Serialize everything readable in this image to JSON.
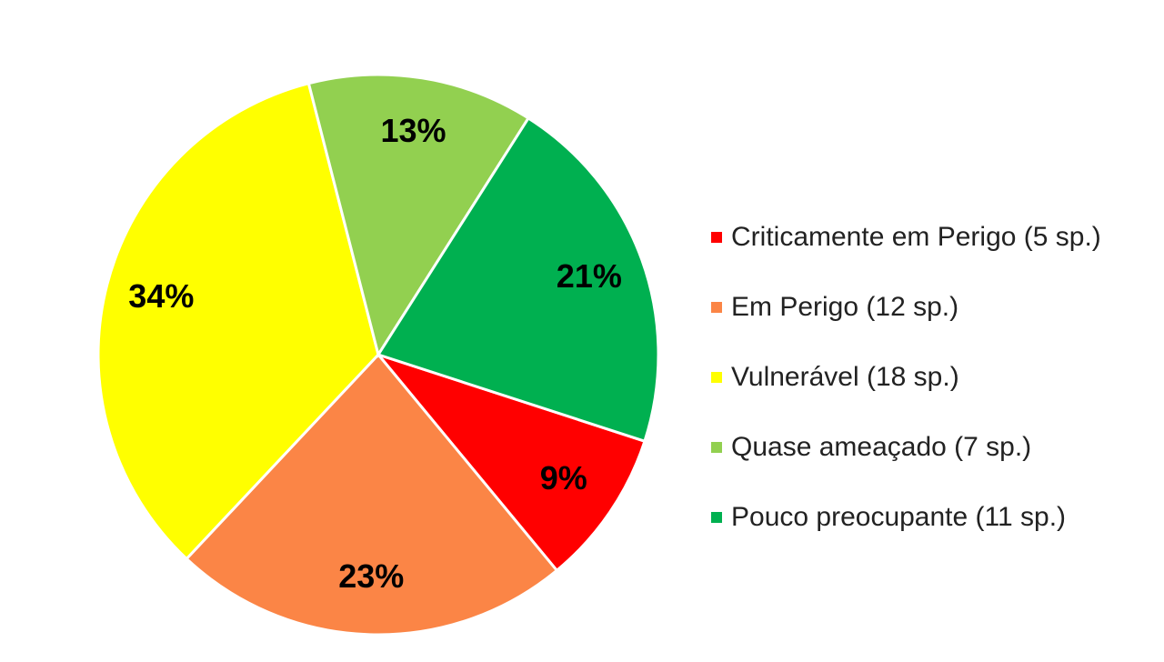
{
  "chart_data": {
    "type": "pie",
    "title": "",
    "legend_position": "right",
    "slices": [
      {
        "label": "Criticamente em Perigo (5 sp.)",
        "value": 9,
        "display": "9%",
        "color": "#ff0000"
      },
      {
        "label": "Em Perigo (12 sp.)",
        "value": 23,
        "display": "23%",
        "color": "#fb8546"
      },
      {
        "label": "Vulnerável (18 sp.)",
        "value": 34,
        "display": "34%",
        "color": "#ffff00"
      },
      {
        "label": "Quase ameaçado (7 sp.)",
        "value": 13,
        "display": "13%",
        "color": "#92d050"
      },
      {
        "label": "Pouco preocupante (11 sp.)",
        "value": 21,
        "display": "21%",
        "color": "#00b050"
      }
    ]
  }
}
